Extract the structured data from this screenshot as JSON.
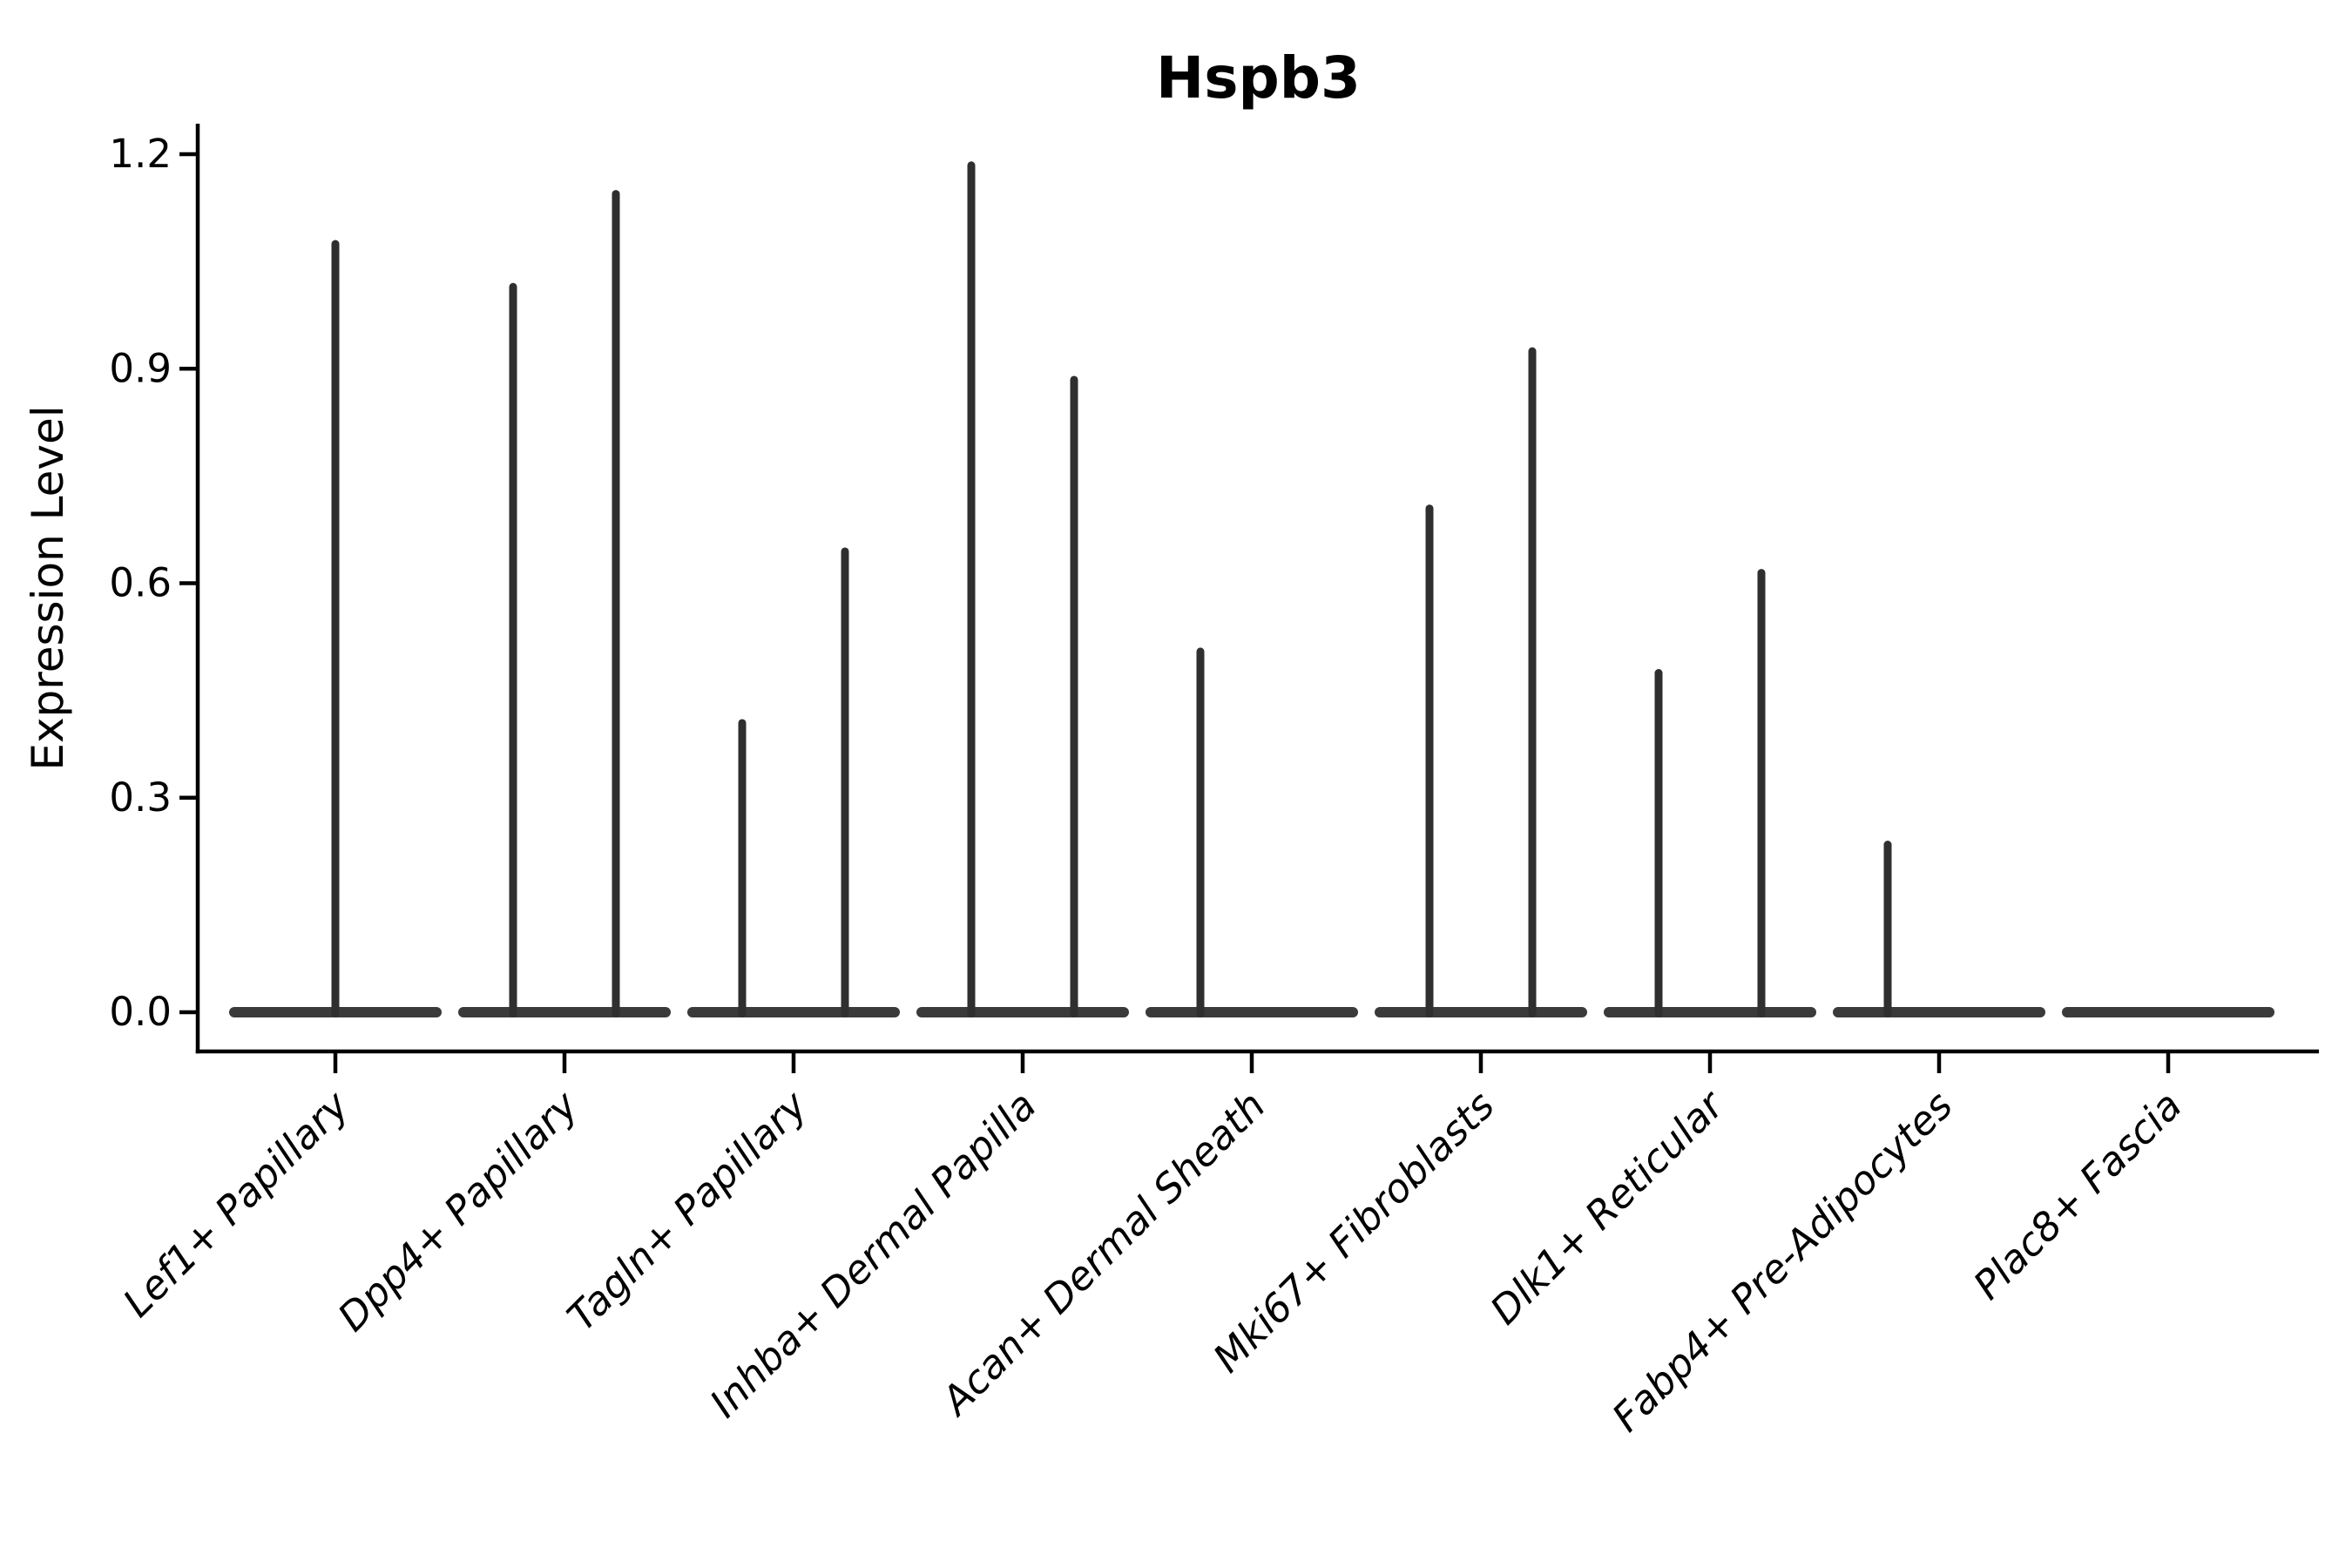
{
  "chart_data": {
    "type": "violin",
    "title": "Hspb3",
    "xlabel": "",
    "ylabel": "Expression Level",
    "ylim": [
      0.0,
      1.25
    ],
    "yticks": [
      {
        "value": 0.0,
        "label": "0.0"
      },
      {
        "value": 0.3,
        "label": "0.3"
      },
      {
        "value": 0.6,
        "label": "0.6"
      },
      {
        "value": 0.9,
        "label": "0.9"
      },
      {
        "value": 1.2,
        "label": "1.2"
      }
    ],
    "grid": "off",
    "legend": "none",
    "categories": [
      "Lef1+ Papillary",
      "Dpp4+ Papillary",
      "Tagln+ Papillary",
      "Inhba+ Dermal Papilla",
      "Acan+ Dermal Sheath",
      "Mki67+ Fibroblasts",
      "Dlk1+ Reticular",
      "Fabp4+ Pre-Adipocytes",
      "Plac8+ Fascia"
    ],
    "violins": [
      {
        "category": "Lef1+ Papillary",
        "base_at_zero": true,
        "spikes": [
          {
            "position": "center",
            "max_expression": 1.08
          }
        ]
      },
      {
        "category": "Dpp4+ Papillary",
        "base_at_zero": true,
        "spikes": [
          {
            "position": "left",
            "max_expression": 1.02
          },
          {
            "position": "right",
            "max_expression": 1.15
          }
        ]
      },
      {
        "category": "Tagln+ Papillary",
        "base_at_zero": true,
        "spikes": [
          {
            "position": "left",
            "max_expression": 0.41
          },
          {
            "position": "right",
            "max_expression": 0.65
          }
        ]
      },
      {
        "category": "Inhba+ Dermal Papilla",
        "base_at_zero": true,
        "spikes": [
          {
            "position": "left",
            "max_expression": 1.19
          },
          {
            "position": "right",
            "max_expression": 0.89
          }
        ]
      },
      {
        "category": "Acan+ Dermal Sheath",
        "base_at_zero": true,
        "spikes": [
          {
            "position": "left",
            "max_expression": 0.51
          }
        ]
      },
      {
        "category": "Mki67+ Fibroblasts",
        "base_at_zero": true,
        "spikes": [
          {
            "position": "left",
            "max_expression": 0.71
          },
          {
            "position": "right",
            "max_expression": 0.93
          }
        ]
      },
      {
        "category": "Dlk1+ Reticular",
        "base_at_zero": true,
        "spikes": [
          {
            "position": "left",
            "max_expression": 0.48
          },
          {
            "position": "right",
            "max_expression": 0.62
          }
        ]
      },
      {
        "category": "Fabp4+ Pre-Adipocytes",
        "base_at_zero": true,
        "spikes": [
          {
            "position": "left",
            "max_expression": 0.24
          }
        ]
      },
      {
        "category": "Plac8+ Fascia",
        "base_at_zero": true,
        "spikes": []
      }
    ],
    "colors": {
      "axis": "#000000",
      "text": "#000000",
      "violin": "#2f2f2f",
      "violin_base": "#3a3a3a",
      "background": "#ffffff"
    }
  }
}
